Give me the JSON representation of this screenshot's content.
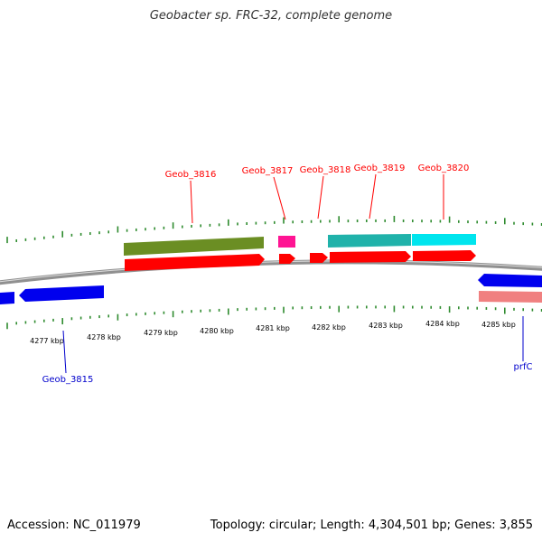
{
  "title": "Geobacter sp. FRC-32, complete genome",
  "accession": "Accession: NC_011979",
  "summary": "Topology: circular; Length: 4,304,501 bp; Genes: 3,855",
  "colors": {
    "backbone": "#909090",
    "tick": "#2e8b2e",
    "forward_cds": "#ff0000",
    "reverse_cds": "#0000ee",
    "reverse_cds_pale": "#f08080",
    "cog_olive": "#6b8e23",
    "cog_pink": "#ff1493",
    "cog_teal": "#20b2aa",
    "cog_cyan": "#00e5ee",
    "label_forward": "#ff0000",
    "label_reverse": "#0000cc"
  },
  "scale_labels": [
    "4277 kbp",
    "4278 kbp",
    "4279 kbp",
    "4280 kbp",
    "4281 kbp",
    "4282 kbp",
    "4283 kbp",
    "4284 kbp",
    "4285 kbp"
  ],
  "gene_labels": {
    "top": [
      "Geob_3816",
      "Geob_3817",
      "Geob_3818",
      "Geob_3819",
      "Geob_3820"
    ],
    "bottom": [
      "Geob_3815",
      "prfC"
    ]
  }
}
